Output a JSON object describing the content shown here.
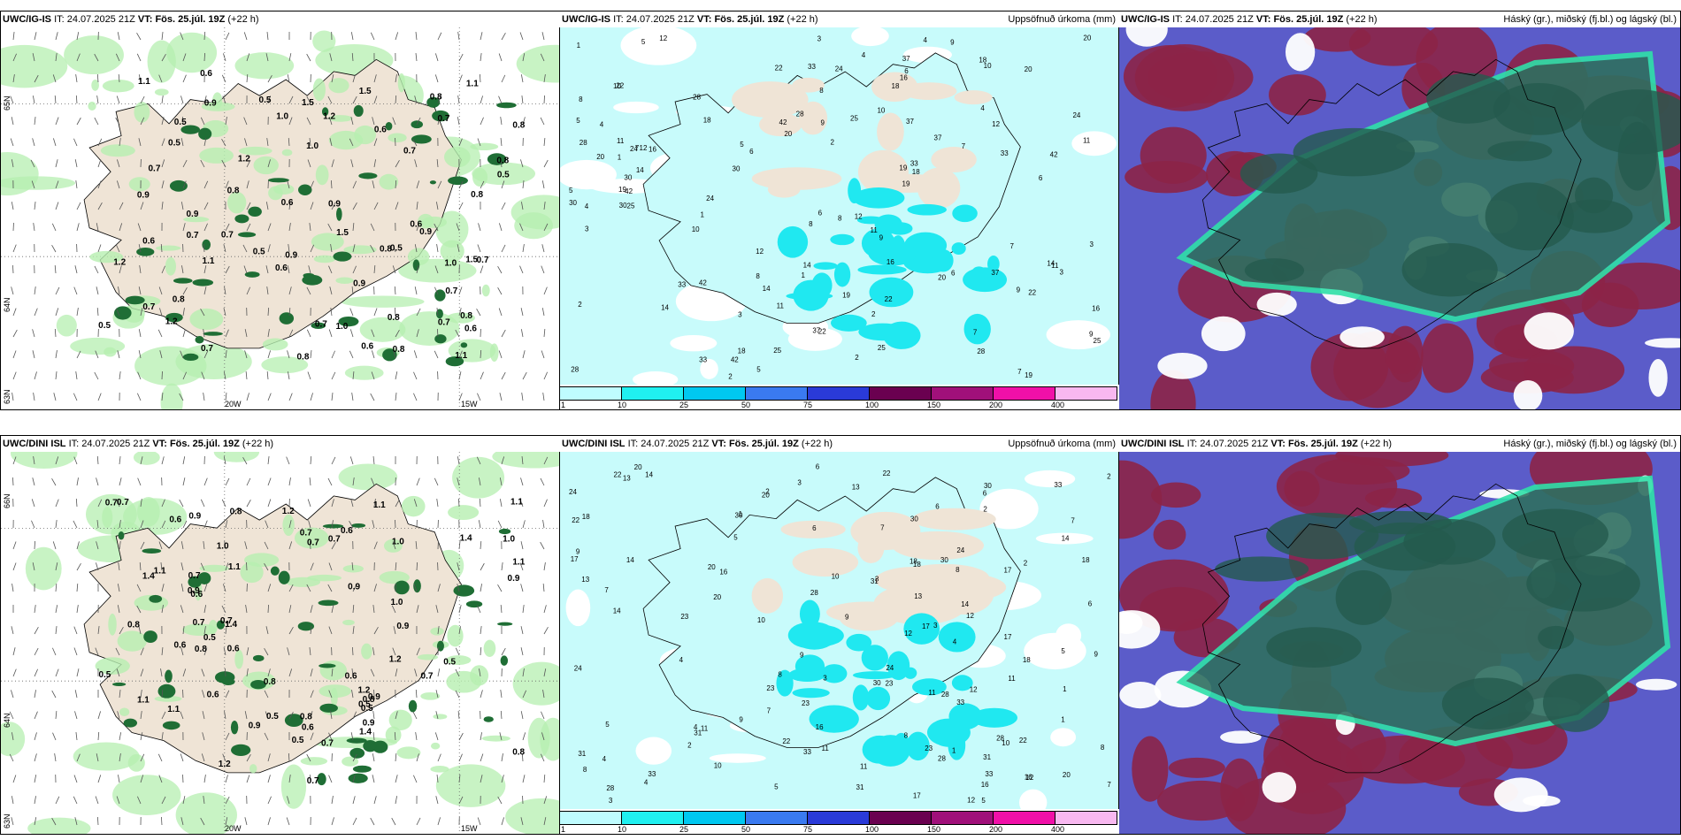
{
  "rows": [
    {
      "model": "UWC/IG-IS",
      "it_label": "IT:",
      "it_value": "24.07.2025 21Z",
      "vt_label": "VT:",
      "vt_value": "Fös. 25.júl. 19Z",
      "lead": "(+22 h)",
      "precip_title": "Uppsöfnuð úrkoma (mm)",
      "cloud_title": "Háský (gr.), miðský (fj.bl.) og lágský (bl.)",
      "lat_labels": [
        "65N",
        "64N",
        "63N"
      ],
      "lon_labels": [
        "20W",
        "15W"
      ],
      "wind_values": [
        "0.8",
        "1.5",
        "0.7",
        "0.6",
        "1.0",
        "0.8",
        "0.5",
        "0.9",
        "0.7",
        "1.1",
        "1.2",
        "0.6",
        "0.9",
        "0.8",
        "0.7",
        "0.5"
      ],
      "precip_values": [
        "3",
        "6",
        "11",
        "14",
        "9",
        "12",
        "19",
        "22",
        "25",
        "28",
        "37",
        "33",
        "42",
        "18",
        "20",
        "5",
        "7",
        "4",
        "8",
        "2",
        "1",
        "10",
        "16",
        "24",
        "30"
      ]
    },
    {
      "model": "UWC/DINI ISL",
      "it_label": "IT:",
      "it_value": "24.07.2025 21Z",
      "vt_label": "VT:",
      "vt_value": "Fös. 25.júl. 19Z",
      "lead": "(+22 h)",
      "precip_title": "Uppsöfnuð úrkoma (mm)",
      "cloud_title": "Háský (gr.), miðský (fj.bl.) og lágský (bl.)",
      "lat_labels": [
        "66N",
        "64N",
        "63N"
      ],
      "lon_labels": [
        "20W",
        "15W"
      ],
      "wind_values": [
        "0.9",
        "0.7",
        "1.1",
        "0.6",
        "1.2",
        "0.8",
        "0.5",
        "1.0",
        "0.7",
        "0.9",
        "1.4",
        "0.6",
        "0.8",
        "1.1",
        "0.7",
        "0.5"
      ],
      "precip_values": [
        "3",
        "6",
        "11",
        "14",
        "9",
        "12",
        "17",
        "22",
        "23",
        "28",
        "30",
        "31",
        "33",
        "18",
        "20",
        "5",
        "7",
        "4",
        "8",
        "2",
        "1",
        "10",
        "16",
        "24",
        "13"
      ]
    }
  ],
  "colorbar": {
    "ticks": [
      "1",
      "10",
      "25",
      "50",
      "75",
      "100",
      "150",
      "200",
      "400"
    ],
    "colors": [
      "#bffcff",
      "#20f0f0",
      "#00c8f0",
      "#3a7af0",
      "#2a3ad8",
      "#6a0050",
      "#a0107a",
      "#f010a8",
      "#f8b8f0"
    ]
  },
  "colors": {
    "land": "#efe4d6",
    "precip_bg": "#c8fbfb",
    "rain_green": "#b6efb0",
    "rain_dark": "#1f6e35",
    "cloud_green": "#2f6f60",
    "cloud_red": "#8c2447",
    "cloud_blue": "#5b5cc9"
  }
}
